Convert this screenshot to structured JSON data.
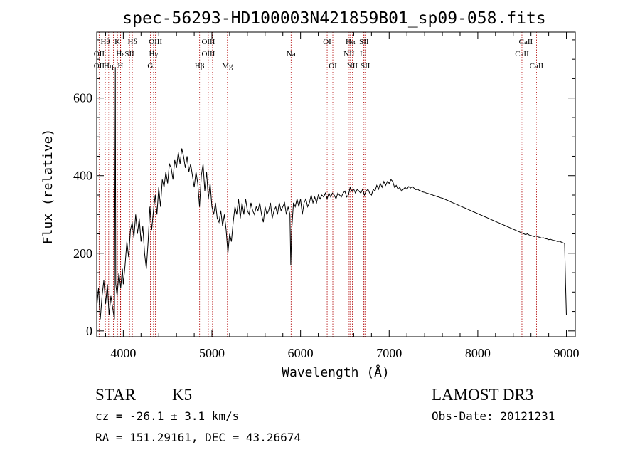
{
  "chart_data": {
    "type": "line",
    "title": "spec-56293-HD100003N421859B01_sp09-058.fits",
    "xlabel": "Wavelength (Å)",
    "ylabel": "Flux (relative)",
    "xlim": [
      3700,
      9100
    ],
    "ylim": [
      -15,
      770
    ],
    "x_ticks": [
      4000,
      5000,
      6000,
      7000,
      8000,
      9000
    ],
    "x_tick_labels": [
      "4000",
      "5000",
      "6000",
      "7000",
      "8000",
      "9000"
    ],
    "y_ticks": [
      0,
      200,
      400,
      600
    ],
    "y_tick_labels": [
      "0",
      "200",
      "400",
      "600"
    ],
    "series": [
      {
        "color": "#000000",
        "points": [
          [
            3700,
            60
          ],
          [
            3720,
            110
          ],
          [
            3740,
            30
          ],
          [
            3760,
            90
          ],
          [
            3780,
            130
          ],
          [
            3800,
            70
          ],
          [
            3820,
            120
          ],
          [
            3840,
            40
          ],
          [
            3860,
            90
          ],
          [
            3880,
            60
          ],
          [
            3900,
            30
          ],
          [
            3910,
            680
          ],
          [
            3915,
            120
          ],
          [
            3930,
            90
          ],
          [
            3950,
            150
          ],
          [
            3970,
            110
          ],
          [
            3990,
            160
          ],
          [
            4000,
            120
          ],
          [
            4020,
            170
          ],
          [
            4040,
            230
          ],
          [
            4060,
            190
          ],
          [
            4080,
            260
          ],
          [
            4100,
            280
          ],
          [
            4120,
            240
          ],
          [
            4140,
            300
          ],
          [
            4160,
            250
          ],
          [
            4180,
            290
          ],
          [
            4200,
            230
          ],
          [
            4220,
            270
          ],
          [
            4240,
            200
          ],
          [
            4260,
            160
          ],
          [
            4280,
            230
          ],
          [
            4300,
            320
          ],
          [
            4320,
            260
          ],
          [
            4340,
            310
          ],
          [
            4360,
            350
          ],
          [
            4380,
            300
          ],
          [
            4400,
            370
          ],
          [
            4420,
            320
          ],
          [
            4440,
            390
          ],
          [
            4460,
            370
          ],
          [
            4480,
            410
          ],
          [
            4500,
            380
          ],
          [
            4520,
            430
          ],
          [
            4540,
            420
          ],
          [
            4560,
            390
          ],
          [
            4580,
            440
          ],
          [
            4600,
            420
          ],
          [
            4620,
            460
          ],
          [
            4640,
            430
          ],
          [
            4660,
            470
          ],
          [
            4680,
            450
          ],
          [
            4700,
            420
          ],
          [
            4720,
            450
          ],
          [
            4740,
            410
          ],
          [
            4760,
            430
          ],
          [
            4780,
            400
          ],
          [
            4800,
            370
          ],
          [
            4820,
            410
          ],
          [
            4840,
            380
          ],
          [
            4860,
            320
          ],
          [
            4880,
            400
          ],
          [
            4900,
            430
          ],
          [
            4920,
            360
          ],
          [
            4940,
            410
          ],
          [
            4960,
            340
          ],
          [
            4980,
            380
          ],
          [
            5000,
            320
          ],
          [
            5020,
            300
          ],
          [
            5040,
            330
          ],
          [
            5060,
            290
          ],
          [
            5080,
            280
          ],
          [
            5100,
            310
          ],
          [
            5120,
            270
          ],
          [
            5140,
            300
          ],
          [
            5160,
            260
          ],
          [
            5180,
            200
          ],
          [
            5200,
            250
          ],
          [
            5220,
            230
          ],
          [
            5240,
            280
          ],
          [
            5260,
            320
          ],
          [
            5280,
            300
          ],
          [
            5300,
            340
          ],
          [
            5320,
            290
          ],
          [
            5340,
            330
          ],
          [
            5360,
            300
          ],
          [
            5380,
            340
          ],
          [
            5400,
            310
          ],
          [
            5420,
            300
          ],
          [
            5440,
            330
          ],
          [
            5460,
            310
          ],
          [
            5480,
            300
          ],
          [
            5500,
            320
          ],
          [
            5520,
            310
          ],
          [
            5540,
            330
          ],
          [
            5560,
            300
          ],
          [
            5580,
            280
          ],
          [
            5600,
            320
          ],
          [
            5620,
            300
          ],
          [
            5640,
            310
          ],
          [
            5660,
            330
          ],
          [
            5680,
            290
          ],
          [
            5700,
            310
          ],
          [
            5720,
            320
          ],
          [
            5740,
            300
          ],
          [
            5760,
            330
          ],
          [
            5780,
            310
          ],
          [
            5800,
            320
          ],
          [
            5820,
            330
          ],
          [
            5840,
            300
          ],
          [
            5860,
            320
          ],
          [
            5880,
            300
          ],
          [
            5890,
            170
          ],
          [
            5900,
            260
          ],
          [
            5920,
            330
          ],
          [
            5940,
            320
          ],
          [
            5960,
            340
          ],
          [
            5980,
            320
          ],
          [
            6000,
            340
          ],
          [
            6020,
            300
          ],
          [
            6040,
            330
          ],
          [
            6060,
            340
          ],
          [
            6080,
            320
          ],
          [
            6100,
            330
          ],
          [
            6120,
            350
          ],
          [
            6140,
            330
          ],
          [
            6160,
            345
          ],
          [
            6180,
            330
          ],
          [
            6200,
            350
          ],
          [
            6220,
            340
          ],
          [
            6240,
            350
          ],
          [
            6260,
            345
          ],
          [
            6280,
            355
          ],
          [
            6300,
            340
          ],
          [
            6320,
            355
          ],
          [
            6340,
            345
          ],
          [
            6360,
            355
          ],
          [
            6380,
            350
          ],
          [
            6400,
            340
          ],
          [
            6420,
            355
          ],
          [
            6440,
            350
          ],
          [
            6460,
            345
          ],
          [
            6480,
            355
          ],
          [
            6500,
            360
          ],
          [
            6520,
            345
          ],
          [
            6540,
            350
          ],
          [
            6560,
            370
          ],
          [
            6580,
            360
          ],
          [
            6600,
            365
          ],
          [
            6620,
            355
          ],
          [
            6640,
            365
          ],
          [
            6660,
            360
          ],
          [
            6680,
            355
          ],
          [
            6700,
            365
          ],
          [
            6720,
            350
          ],
          [
            6740,
            360
          ],
          [
            6760,
            365
          ],
          [
            6780,
            355
          ],
          [
            6800,
            350
          ],
          [
            6820,
            365
          ],
          [
            6840,
            360
          ],
          [
            6860,
            375
          ],
          [
            6880,
            365
          ],
          [
            6900,
            380
          ],
          [
            6920,
            370
          ],
          [
            6940,
            385
          ],
          [
            6960,
            375
          ],
          [
            6980,
            385
          ],
          [
            7000,
            380
          ],
          [
            7020,
            390
          ],
          [
            7040,
            385
          ],
          [
            7060,
            370
          ],
          [
            7080,
            375
          ],
          [
            7100,
            365
          ],
          [
            7120,
            370
          ],
          [
            7140,
            360
          ],
          [
            7160,
            365
          ],
          [
            7180,
            370
          ],
          [
            7200,
            365
          ],
          [
            7220,
            372
          ],
          [
            7240,
            368
          ],
          [
            7260,
            372
          ],
          [
            7280,
            368
          ],
          [
            7300,
            364
          ],
          [
            7320,
            365
          ],
          [
            7340,
            362
          ],
          [
            7360,
            360
          ],
          [
            7380,
            358
          ],
          [
            7400,
            357
          ],
          [
            7420,
            355
          ],
          [
            7440,
            354
          ],
          [
            7460,
            352
          ],
          [
            7480,
            351
          ],
          [
            7500,
            349
          ],
          [
            7520,
            348
          ],
          [
            7540,
            346
          ],
          [
            7560,
            345
          ],
          [
            7580,
            343
          ],
          [
            7600,
            342
          ],
          [
            7620,
            340
          ],
          [
            7640,
            338
          ],
          [
            7660,
            336
          ],
          [
            7680,
            334
          ],
          [
            7700,
            332
          ],
          [
            7720,
            330
          ],
          [
            7740,
            328
          ],
          [
            7760,
            326
          ],
          [
            7780,
            324
          ],
          [
            7800,
            322
          ],
          [
            7820,
            320
          ],
          [
            7840,
            318
          ],
          [
            7860,
            316
          ],
          [
            7880,
            314
          ],
          [
            7900,
            312
          ],
          [
            7920,
            310
          ],
          [
            7940,
            308
          ],
          [
            7960,
            306
          ],
          [
            7980,
            304
          ],
          [
            8000,
            302
          ],
          [
            8020,
            300
          ],
          [
            8040,
            298
          ],
          [
            8060,
            296
          ],
          [
            8080,
            294
          ],
          [
            8100,
            292
          ],
          [
            8120,
            290
          ],
          [
            8140,
            288
          ],
          [
            8160,
            286
          ],
          [
            8180,
            284
          ],
          [
            8200,
            282
          ],
          [
            8220,
            280
          ],
          [
            8240,
            278
          ],
          [
            8260,
            276
          ],
          [
            8280,
            274
          ],
          [
            8300,
            272
          ],
          [
            8320,
            270
          ],
          [
            8340,
            268
          ],
          [
            8360,
            266
          ],
          [
            8380,
            264
          ],
          [
            8400,
            262
          ],
          [
            8420,
            260
          ],
          [
            8440,
            258
          ],
          [
            8460,
            256
          ],
          [
            8480,
            254
          ],
          [
            8500,
            252
          ],
          [
            8520,
            250
          ],
          [
            8540,
            248
          ],
          [
            8560,
            250
          ],
          [
            8580,
            247
          ],
          [
            8600,
            246
          ],
          [
            8620,
            244
          ],
          [
            8640,
            243
          ],
          [
            8660,
            245
          ],
          [
            8680,
            242
          ],
          [
            8700,
            241
          ],
          [
            8720,
            239
          ],
          [
            8740,
            240
          ],
          [
            8760,
            238
          ],
          [
            8780,
            237
          ],
          [
            8800,
            235
          ],
          [
            8820,
            236
          ],
          [
            8840,
            234
          ],
          [
            8860,
            233
          ],
          [
            8880,
            232
          ],
          [
            8900,
            230
          ],
          [
            8920,
            231
          ],
          [
            8940,
            229
          ],
          [
            8960,
            227
          ],
          [
            8980,
            225
          ],
          [
            8990,
            120
          ],
          [
            9000,
            40
          ]
        ]
      }
    ],
    "line_markers": [
      {
        "label": "Hθ",
        "x": 3797,
        "row": 1
      },
      {
        "label": "OII",
        "x": 3727,
        "row": 2
      },
      {
        "label": "OII",
        "x": 3727,
        "row": 3
      },
      {
        "label": "K",
        "x": 3934,
        "row": 1
      },
      {
        "label": "Hε",
        "x": 3970,
        "row": 2
      },
      {
        "label": "Hη",
        "x": 3835,
        "row": 3
      },
      {
        "label": "H",
        "x": 3968,
        "row": 3
      },
      {
        "label": "Hδ",
        "x": 4102,
        "row": 1
      },
      {
        "label": "SII",
        "x": 4070,
        "row": 2
      },
      {
        "label": "OIII",
        "x": 4363,
        "row": 1
      },
      {
        "label": "Hγ",
        "x": 4341,
        "row": 2
      },
      {
        "label": "G",
        "x": 4305,
        "row": 3
      },
      {
        "label": "OIII",
        "x": 4959,
        "row": 1
      },
      {
        "label": "OIII",
        "x": 4959,
        "row": 2
      },
      {
        "label": "Hβ",
        "x": 4861,
        "row": 3
      },
      {
        "label": "Mg",
        "x": 5175,
        "row": 3
      },
      {
        "label": "Na",
        "x": 5893,
        "row": 2
      },
      {
        "label": "OI",
        "x": 6300,
        "row": 1
      },
      {
        "label": "OI",
        "x": 6364,
        "row": 3
      },
      {
        "label": "Hα",
        "x": 6563,
        "row": 1
      },
      {
        "label": "SII",
        "x": 6716,
        "row": 1
      },
      {
        "label": "NII",
        "x": 6548,
        "row": 2
      },
      {
        "label": "Li",
        "x": 6708,
        "row": 2
      },
      {
        "label": "NII",
        "x": 6584,
        "row": 3
      },
      {
        "label": "SII",
        "x": 6731,
        "row": 3
      },
      {
        "label": "CaII",
        "x": 8542,
        "row": 1
      },
      {
        "label": "CaII",
        "x": 8498,
        "row": 2
      },
      {
        "label": "CaII",
        "x": 8662,
        "row": 3
      }
    ],
    "marker_lines_x": [
      3727,
      3797,
      3835,
      3889,
      3934,
      3968,
      3970,
      4070,
      4102,
      4305,
      4341,
      4363,
      4861,
      4959,
      5007,
      5175,
      5893,
      6300,
      6364,
      6548,
      6563,
      6584,
      6708,
      6716,
      6731,
      8498,
      8542,
      8662
    ],
    "marker_color": "#b00000"
  },
  "info": {
    "class": "STAR",
    "subclass": "K5",
    "survey": "LAMOST DR3",
    "cz": "cz = -26.1 ± 3.1 km/s",
    "obs_date": "Obs-Date: 20121231",
    "radec": "RA = 151.29161, DEC =  43.26674"
  }
}
